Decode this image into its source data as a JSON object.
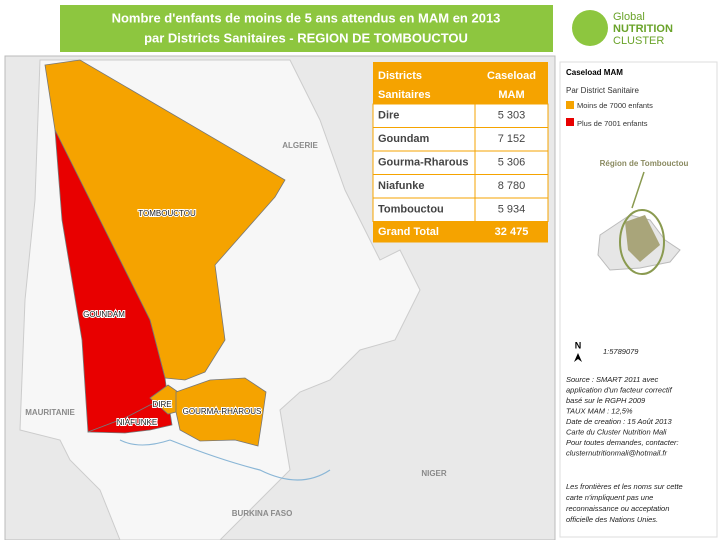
{
  "header": {
    "title": [
      "Nombre d'enfants de moins de 5 ans attendus en MAM en 2013",
      "par Districts Sanitaires - REGION DE TOMBOUCTOU"
    ],
    "logo": [
      "Global",
      "NUTRITION",
      "CLUSTER"
    ]
  },
  "table": {
    "header": [
      [
        "Districts",
        "Caseload"
      ],
      [
        "Sanitaires",
        "MAM"
      ]
    ],
    "rows": [
      [
        "Dire",
        "5 303"
      ],
      [
        "Goundam",
        "7 152"
      ],
      [
        "Gourma-Rharous",
        "5 306"
      ],
      [
        "Niafunke",
        "8 780"
      ],
      [
        "Tombouctou",
        "5 934"
      ]
    ],
    "total": [
      "Grand Total",
      "32 475"
    ]
  },
  "legend": {
    "title": "Caseload MAM",
    "subtitle": "Par District Sanitaire",
    "items": [
      "Moins de 7000 enfants",
      "Plus de 7001 enfants"
    ],
    "inset_title": "Région de Tombouctou",
    "scale": "1:5789079",
    "notes": [
      "Source : SMART 2011 avec",
      "application d'un facteur correctif",
      "basé sur le RGPH 2009",
      "TAUX MAM : 12,5%",
      "Date de creation : 15 Août 2013",
      "Carte du Cluster Nutrition Mali",
      "Pour toutes demandes, contacter:",
      "clusternutritionmali@hotmail.fr"
    ],
    "disclaimer": [
      "Les frontières et les noms sur cette",
      "carte n'impliquent pas une",
      "reconnaissance ou acceptation",
      "officielle des Nations Unies."
    ]
  },
  "map": {
    "labels": {
      "algerie": "ALGERIE",
      "tombouctou": "TOMBOUCTOU",
      "goundam": "GOUNDAM",
      "mauritanie": "MAURITANIE",
      "dire": "DIRE",
      "niafunke": "NIAFUNKE",
      "gourma_rharous": "GOURMA-RHAROUS",
      "niger": "NIGER",
      "burkina_faso": "BURKINA FASO"
    }
  }
}
